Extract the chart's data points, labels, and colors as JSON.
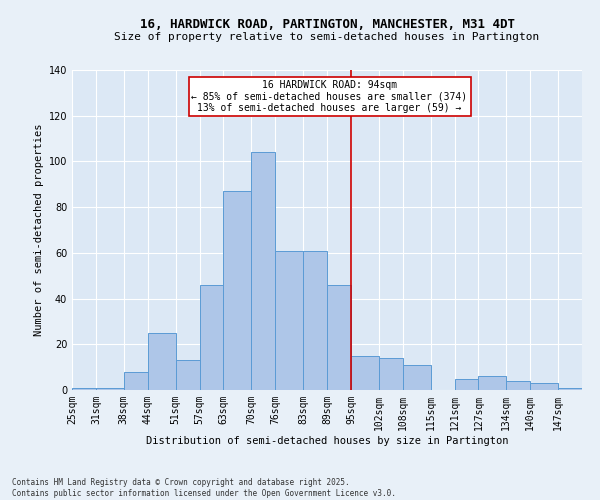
{
  "title1": "16, HARDWICK ROAD, PARTINGTON, MANCHESTER, M31 4DT",
  "title2": "Size of property relative to semi-detached houses in Partington",
  "xlabel": "Distribution of semi-detached houses by size in Partington",
  "ylabel": "Number of semi-detached properties",
  "footer1": "Contains HM Land Registry data © Crown copyright and database right 2025.",
  "footer2": "Contains public sector information licensed under the Open Government Licence v3.0.",
  "bins": [
    25,
    31,
    38,
    44,
    51,
    57,
    63,
    70,
    76,
    83,
    89,
    95,
    102,
    108,
    115,
    121,
    127,
    134,
    140,
    147,
    153
  ],
  "bar_heights": [
    1,
    1,
    8,
    25,
    13,
    46,
    87,
    104,
    61,
    61,
    46,
    15,
    14,
    11,
    0,
    5,
    6,
    4,
    3,
    1
  ],
  "bar_color": "#aec6e8",
  "bar_edge_color": "#5b9bd5",
  "vline_x": 95,
  "vline_color": "#cc0000",
  "annotation_title": "16 HARDWICK ROAD: 94sqm",
  "annotation_line1": "← 85% of semi-detached houses are smaller (374)",
  "annotation_line2": "13% of semi-detached houses are larger (59) →",
  "annotation_box_color": "#cc0000",
  "ylim": [
    0,
    140
  ],
  "yticks": [
    0,
    20,
    40,
    60,
    80,
    100,
    120,
    140
  ],
  "bg_color": "#e8f0f8",
  "plot_bg_color": "#dce8f5",
  "title1_fontsize": 9,
  "title2_fontsize": 8,
  "ylabel_fontsize": 7.5,
  "xlabel_fontsize": 7.5,
  "tick_fontsize": 7,
  "footer_fontsize": 5.5,
  "annotation_fontsize": 7
}
